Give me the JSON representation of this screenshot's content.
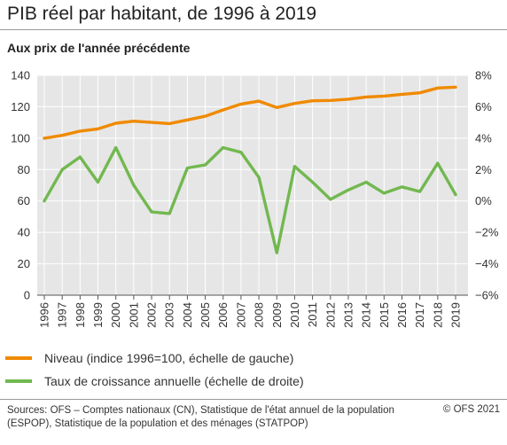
{
  "title": "PIB réel par habitant, de 1996 à 2019",
  "subtitle": "Aux prix de l'année précédente",
  "chart_data": {
    "type": "line",
    "x": [
      "1996",
      "1997",
      "1998",
      "1999",
      "2000",
      "2001",
      "2002",
      "2003",
      "2004",
      "2005",
      "2006",
      "2007",
      "2008",
      "2009",
      "2010",
      "2011",
      "2012",
      "2013",
      "2014",
      "2015",
      "2016",
      "2017",
      "2018",
      "2019"
    ],
    "y_left": {
      "ticks": [
        "0",
        "20",
        "40",
        "60",
        "80",
        "100",
        "120",
        "140"
      ],
      "ylim": [
        0,
        140
      ]
    },
    "y_right": {
      "ticks": [
        "−6%",
        "−4%",
        "−2%",
        "0%",
        "2%",
        "4%",
        "6%",
        "8%"
      ],
      "ylim": [
        -6,
        8
      ]
    },
    "grid": true,
    "series": [
      {
        "name": "Niveau (indice 1996=100, échelle de gauche)",
        "axis": "left",
        "color": "#f08a00",
        "values": [
          100,
          101.8,
          104.5,
          105.9,
          109.5,
          110.8,
          110.0,
          109.3,
          111.6,
          114.0,
          118.0,
          121.7,
          123.6,
          119.5,
          122.1,
          123.8,
          124.0,
          124.8,
          126.2,
          126.8,
          127.9,
          128.9,
          131.9,
          132.5
        ],
        "unit": "index"
      },
      {
        "name": "Taux de croissance annuelle (échelle de droite)",
        "axis": "right",
        "color": "#72b850",
        "values": [
          0.0,
          2.0,
          2.8,
          1.2,
          3.4,
          1.0,
          -0.7,
          -0.8,
          2.1,
          2.3,
          3.4,
          3.1,
          1.5,
          -3.3,
          2.2,
          1.2,
          0.1,
          0.7,
          1.2,
          0.5,
          0.9,
          0.6,
          2.4,
          0.4
        ],
        "unit": "%"
      }
    ]
  },
  "legend": {
    "niveau": "Niveau (indice 1996=100, échelle de gauche)",
    "croissance": "Taux de croissance annuelle (échelle de droite)"
  },
  "footer": {
    "sources": "Sources: OFS – Comptes nationaux (CN), Statistique de l'état annuel de la population (ESPOP), Statistique de la population et des ménages (STATPOP)",
    "copyright": "© OFS 2021"
  }
}
